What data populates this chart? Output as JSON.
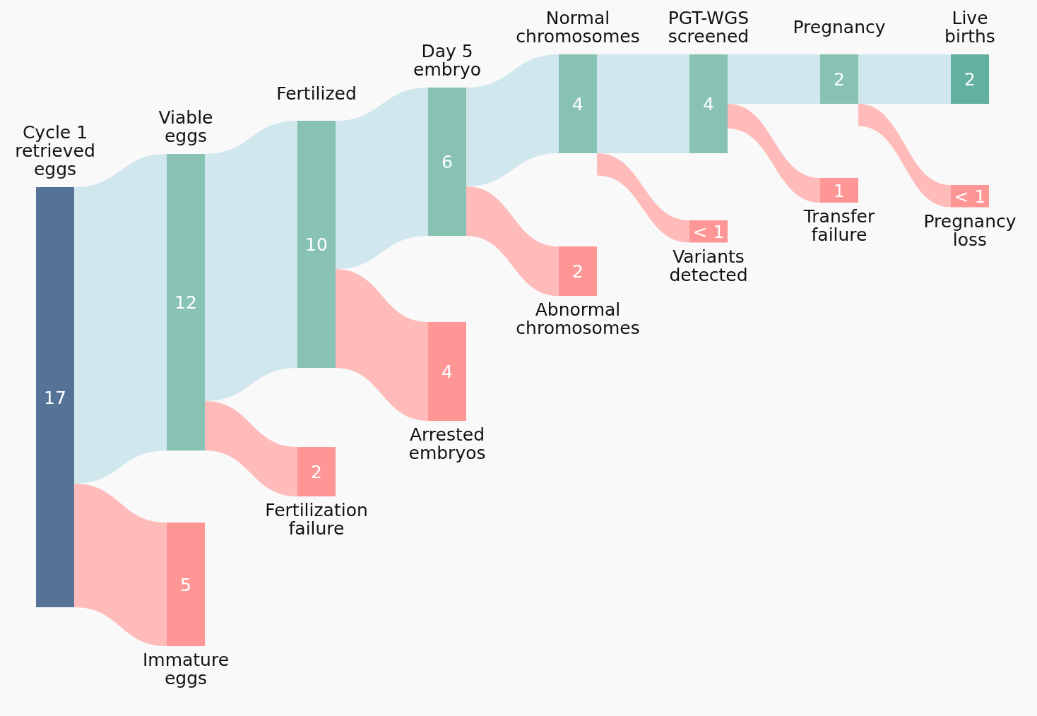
{
  "chart_data": {
    "type": "other",
    "categories": [
      "Cycle 1 retrieved eggs",
      "Viable eggs",
      "Immature eggs",
      "Fertilized",
      "Fertilization failure",
      "Day 5 embryo",
      "Arrested embryos",
      "Normal chromosomes",
      "Abnormal chromosomes",
      "PGT-WGS screened",
      "Variants detected",
      "Pregnancy",
      "Transfer failure",
      "Live births",
      "Pregnancy loss"
    ],
    "series": [
      {
        "color": "#d1e7ee",
        "colors": [
          "#557396",
          "#88c2b3",
          null,
          "#88c2b3",
          null,
          "#88c2b3",
          null,
          "#88c2b3",
          null,
          "#88c2b3",
          null,
          "#88c2b3",
          null,
          "#62b09f",
          null
        ],
        "values": [
          17,
          12,
          null,
          10,
          null,
          6,
          null,
          4,
          null,
          4,
          null,
          2,
          null,
          2,
          null
        ],
        "value_labels": [
          "17",
          "12",
          null,
          "10",
          null,
          "6",
          null,
          "4",
          null,
          "4",
          null,
          "2",
          null,
          "2",
          null
        ]
      },
      {
        "color": "#ffbaba",
        "colors": [
          null,
          null,
          "#ff9696",
          null,
          "#ff9696",
          null,
          "#ff9696",
          null,
          "#ff9696",
          null,
          "#ff9696",
          null,
          "#ff9696",
          null,
          "#ff9696"
        ],
        "values": [
          null,
          null,
          5,
          null,
          2,
          null,
          4,
          null,
          2,
          null,
          0.9,
          null,
          1,
          null,
          0.9
        ],
        "value_labels": [
          null,
          null,
          "5",
          null,
          "2",
          null,
          "4",
          null,
          "2",
          null,
          "< 1",
          null,
          "1",
          null,
          "< 1"
        ]
      }
    ]
  }
}
